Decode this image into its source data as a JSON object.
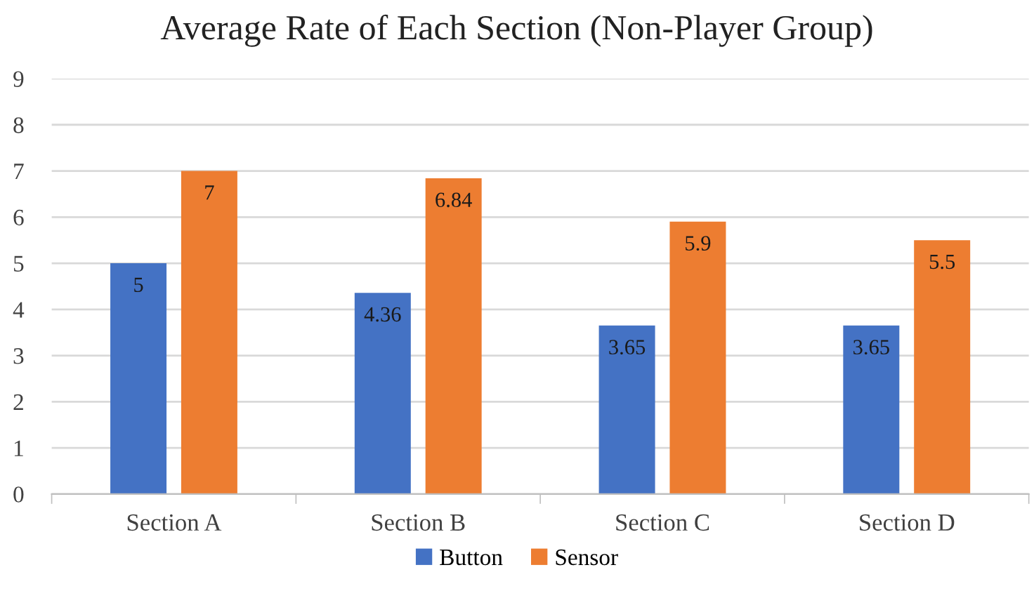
{
  "chart_data": {
    "type": "bar",
    "title": "Average Rate of Each Section (Non-Player Group)",
    "categories": [
      "Section A",
      "Section B",
      "Section C",
      "Section D"
    ],
    "series": [
      {
        "name": "Button",
        "color": "#4472c4",
        "values": [
          5,
          4.36,
          3.65,
          3.65
        ]
      },
      {
        "name": "Sensor",
        "color": "#ed7d31",
        "values": [
          7,
          6.84,
          5.9,
          5.5
        ]
      }
    ],
    "ylim": [
      0,
      9
    ],
    "yticks": [
      0,
      1,
      2,
      3,
      4,
      5,
      6,
      7,
      8,
      9
    ],
    "grid": "y",
    "legend": "bottom",
    "data_labels": true
  }
}
